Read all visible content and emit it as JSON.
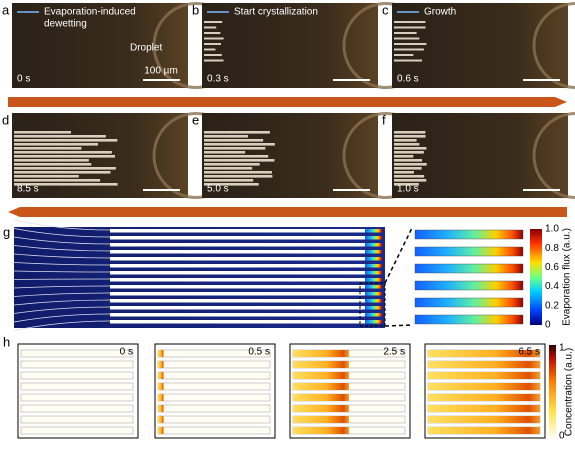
{
  "row1": [
    {
      "letter": "a",
      "time": "0 s",
      "caption": [
        "Evaporation-induced",
        "dewetting"
      ],
      "note": "Droplet",
      "scale": "100 µm"
    },
    {
      "letter": "b",
      "time": "0.3 s",
      "caption": [
        "Start crystallization"
      ]
    },
    {
      "letter": "c",
      "time": "0.6 s",
      "caption": [
        "Growth"
      ]
    }
  ],
  "row2": [
    {
      "letter": "d",
      "time": "8.5 s"
    },
    {
      "letter": "e",
      "time": "5.0 s"
    },
    {
      "letter": "f",
      "time": "1.0 s"
    }
  ],
  "g": {
    "letter": "g",
    "colorbar_ticks": [
      "0",
      "0.2",
      "0.4",
      "0.6",
      "0.8",
      "1.0"
    ],
    "colorbar_label": "Evaporation flux (a.u.)"
  },
  "h": {
    "letter": "h",
    "times": [
      "0 s",
      "0.5 s",
      "2.5 s",
      "6.5 s"
    ],
    "colorbar_ticks": [
      "1",
      "0"
    ],
    "colorbar_label": "Concentration (a.u.)"
  }
}
